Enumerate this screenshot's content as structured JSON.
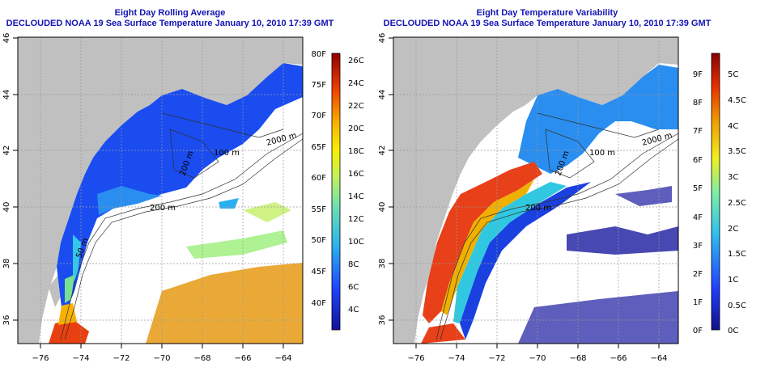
{
  "panels": [
    {
      "title": "Eight Day Rolling Average",
      "subtitle": "DECLOUDED NOAA 19 Sea Surface Temperature January 10, 2010 17:39 GMT",
      "lon_ticks": [
        "−76",
        "−74",
        "−72",
        "−70",
        "−68",
        "−66",
        "−64"
      ],
      "lat_ticks": [
        "46",
        "44",
        "42",
        "40",
        "38",
        "36"
      ],
      "contour_labels": [
        "100 m",
        "200 m",
        "200 m",
        "2000 m",
        "50 m"
      ],
      "colorbar": {
        "f_labels": [
          "80F",
          "75F",
          "70F",
          "65F",
          "60F",
          "55F",
          "50F",
          "45F",
          "40F"
        ],
        "c_labels": [
          "26C",
          "24C",
          "22C",
          "20C",
          "18C",
          "16C",
          "14C",
          "12C",
          "10C",
          "8C",
          "6C",
          "4C"
        ]
      }
    },
    {
      "title": "Eight Day Temperature Variability",
      "subtitle": "DECLOUDED NOAA 19 Sea Surface Temperature January 10, 2010 17:39 GMT",
      "lon_ticks": [
        "−76",
        "−74",
        "−72",
        "−70",
        "−68",
        "−66",
        "−64"
      ],
      "lat_ticks": [
        "46",
        "44",
        "42",
        "40",
        "38",
        "36"
      ],
      "contour_labels": [
        "100 m",
        "200 m",
        "200 m",
        "2000 m"
      ],
      "colorbar": {
        "f_labels": [
          "9F",
          "8F",
          "7F",
          "6F",
          "5F",
          "4F",
          "3F",
          "2F",
          "1F",
          "0F"
        ],
        "c_labels": [
          "5C",
          "4.5C",
          "4C",
          "3.5C",
          "3C",
          "2.5C",
          "2C",
          "1.5C",
          "1C",
          "0.5C",
          "0C"
        ]
      }
    }
  ],
  "colors": {
    "title": "#1414b4",
    "land": "#c0c0c0",
    "ocean_blank": "#ffffff",
    "gridline": "#9a9a9a",
    "contour": "#303030"
  }
}
